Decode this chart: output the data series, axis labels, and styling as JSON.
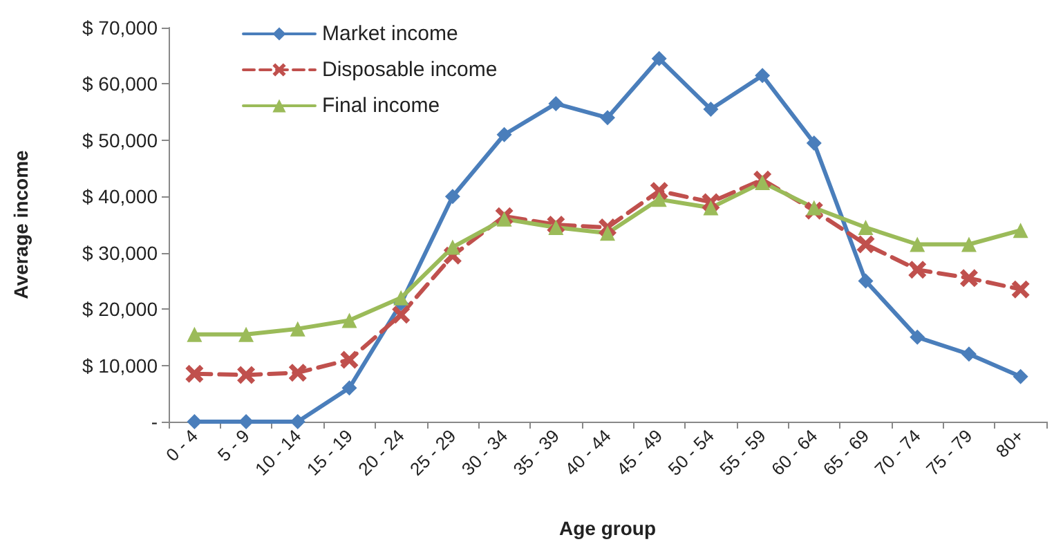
{
  "chart_data": {
    "type": "line",
    "xlabel": "Age group",
    "ylabel": "Average income",
    "categories": [
      "0 - 4",
      "5 - 9",
      "10 - 14",
      "15 - 19",
      "20 - 24",
      "25 - 29",
      "30 - 34",
      "35 - 39",
      "40 - 44",
      "45 - 49",
      "50 - 54",
      "55 - 59",
      "60 - 64",
      "65 - 69",
      "70 - 74",
      "75 - 79",
      "80+"
    ],
    "series": [
      {
        "name": "Market income",
        "color": "#4a7ebb",
        "marker": "diamond",
        "line_style": "solid",
        "values": [
          0,
          0,
          0,
          6000,
          21000,
          40000,
          51000,
          56500,
          54000,
          64500,
          55500,
          61500,
          49500,
          25000,
          15000,
          12000,
          8000
        ]
      },
      {
        "name": "Disposable income",
        "color": "#c0504d",
        "marker": "cross",
        "line_style": "dashed",
        "values": [
          8500,
          8300,
          8700,
          11000,
          19000,
          29500,
          36500,
          35000,
          34500,
          41000,
          39000,
          43000,
          37500,
          31500,
          27000,
          25500,
          23500
        ]
      },
      {
        "name": "Final income",
        "color": "#9bbb59",
        "marker": "triangle",
        "line_style": "solid",
        "values": [
          15500,
          15500,
          16500,
          18000,
          22000,
          31000,
          36000,
          34500,
          33500,
          39500,
          38000,
          42500,
          38000,
          34500,
          31500,
          31500,
          34000
        ]
      }
    ],
    "ylim": [
      0,
      70000
    ],
    "yticks": [
      {
        "value": 0,
        "label": "-"
      },
      {
        "value": 10000,
        "label": "$ 10,000"
      },
      {
        "value": 20000,
        "label": "$ 20,000"
      },
      {
        "value": 30000,
        "label": "$ 30,000"
      },
      {
        "value": 40000,
        "label": "$ 40,000"
      },
      {
        "value": 50000,
        "label": "$ 50,000"
      },
      {
        "value": 60000,
        "label": "$ 60,000"
      },
      {
        "value": 70000,
        "label": "$ 70,000"
      }
    ],
    "grid": false,
    "legend": "top left"
  }
}
